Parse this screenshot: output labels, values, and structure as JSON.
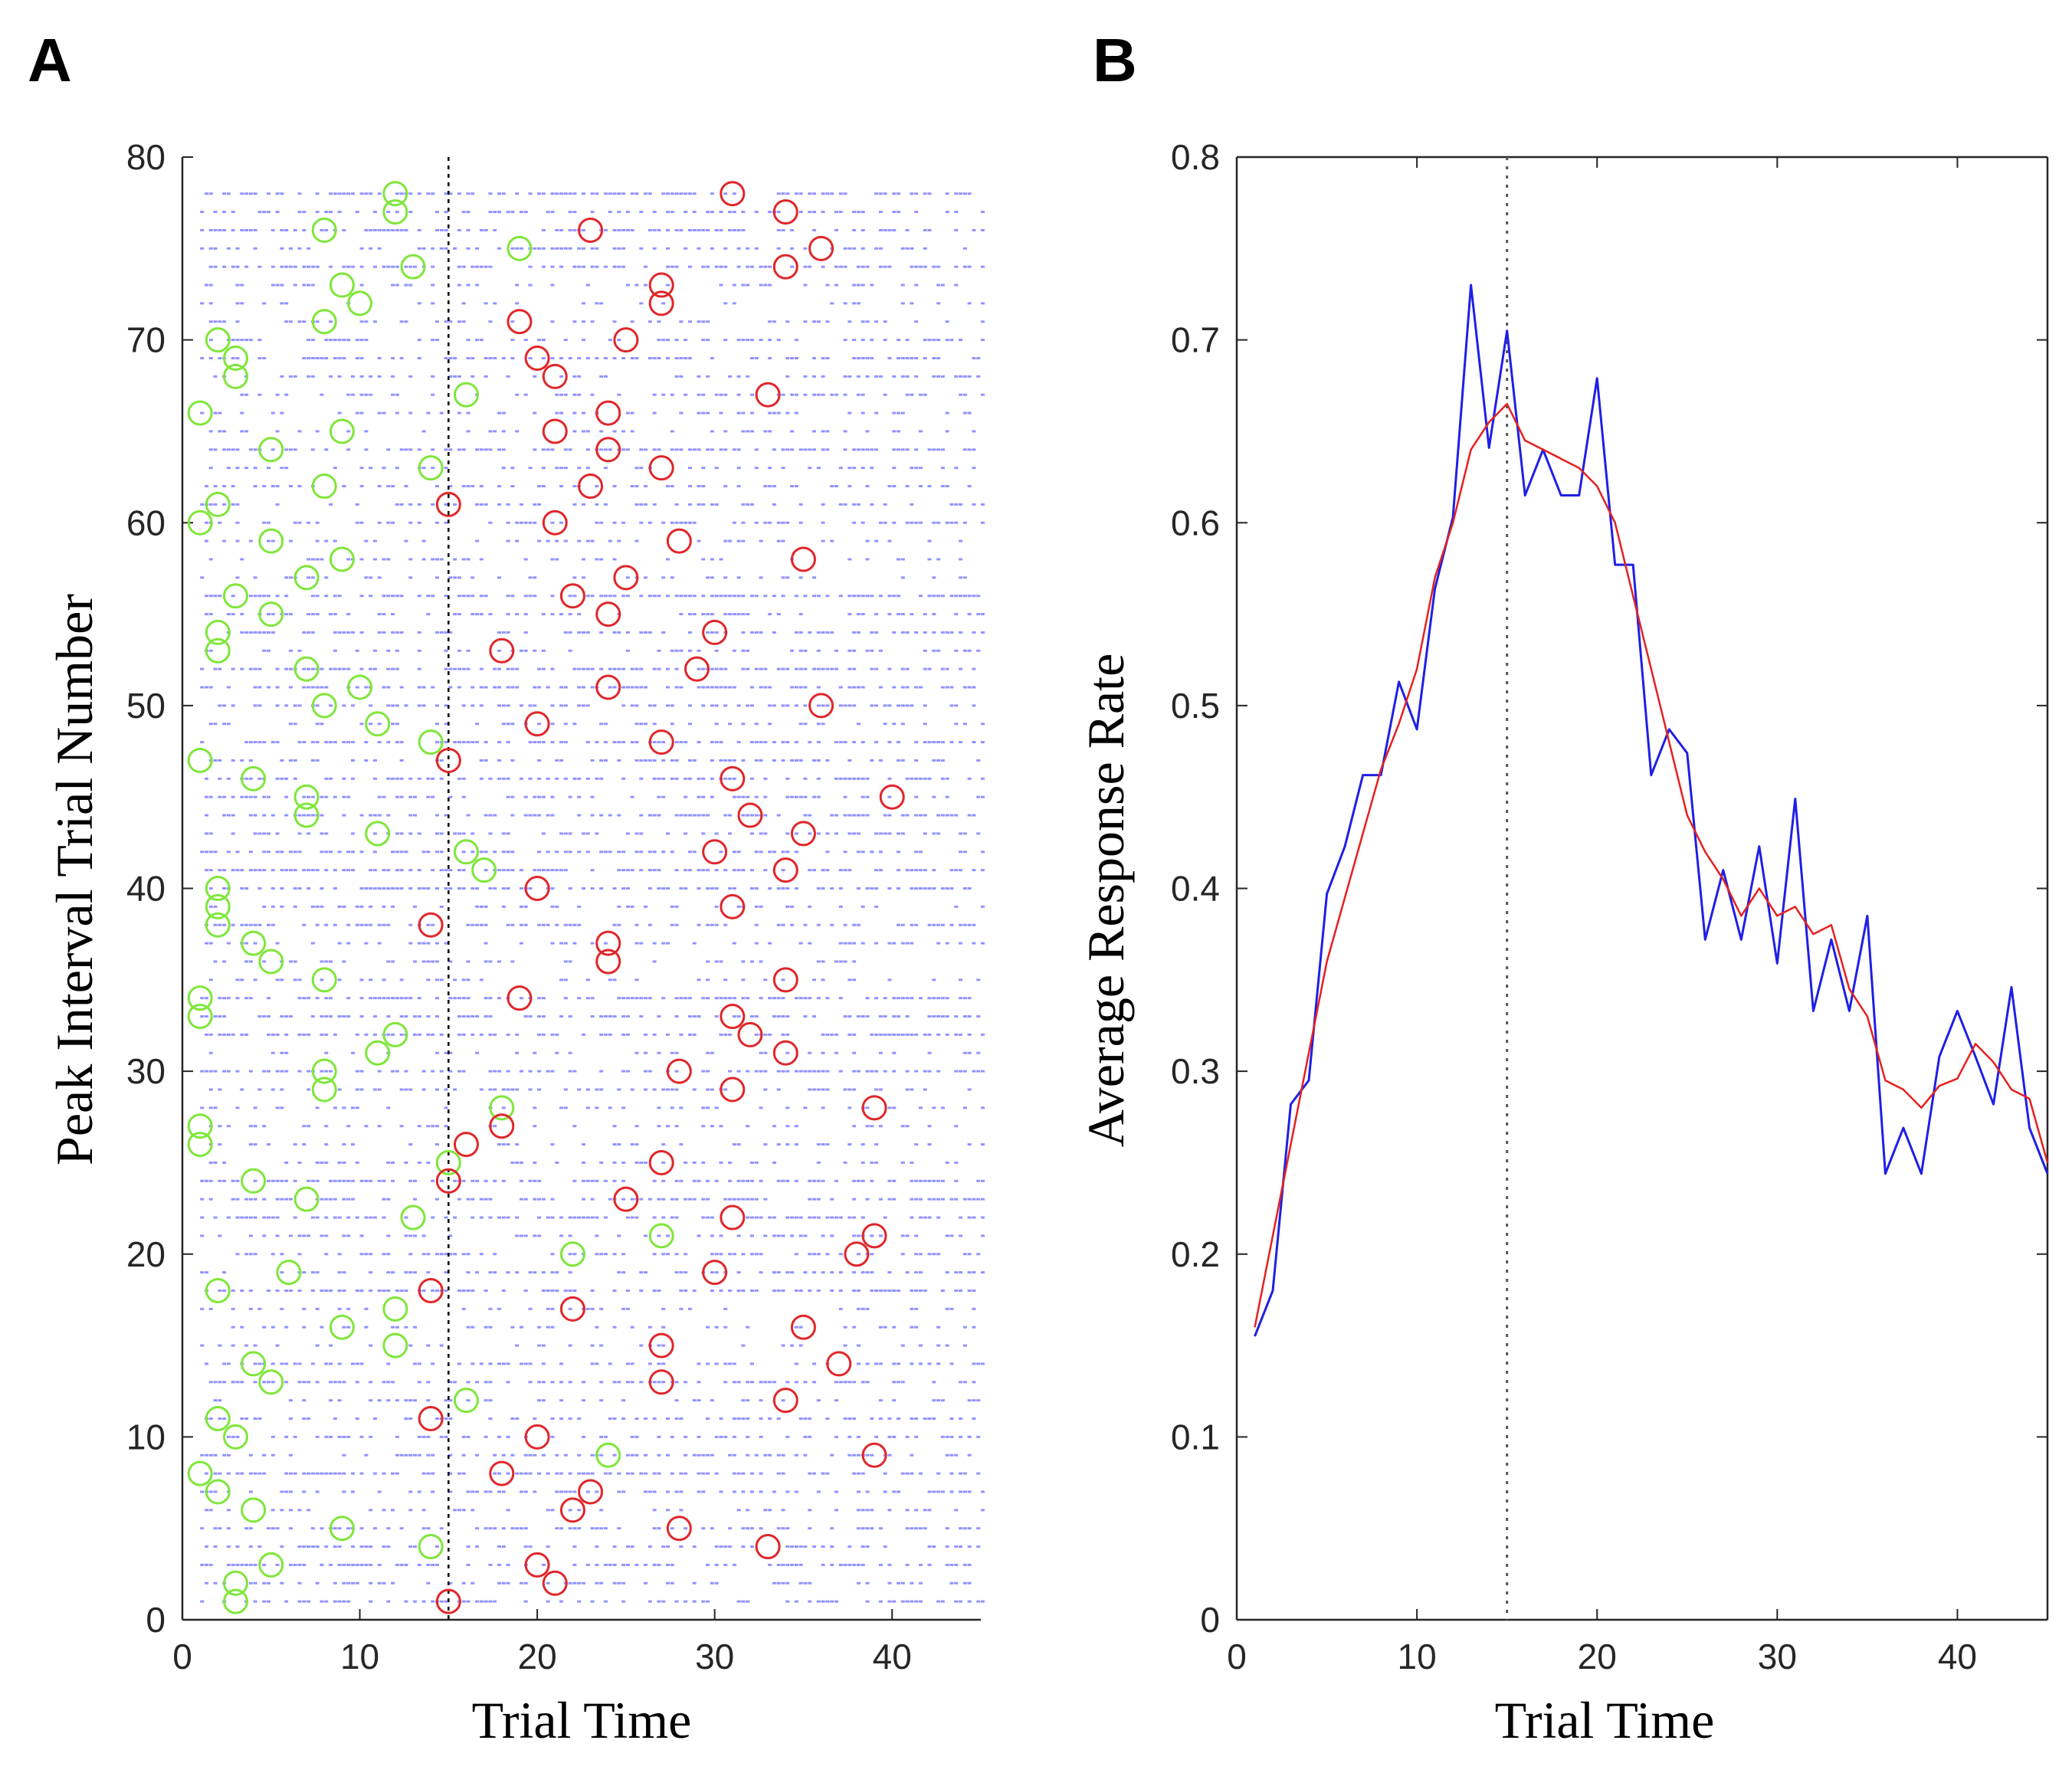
{
  "chart_data": [
    {
      "panel": "A",
      "type": "scatter",
      "xlabel": "Trial Time",
      "ylabel": "Peak Interval Trial Number",
      "xlim": [
        0,
        45
      ],
      "ylim": [
        0,
        80
      ],
      "xticks": [
        0,
        10,
        20,
        30,
        40
      ],
      "yticks": [
        0,
        10,
        20,
        30,
        40,
        50,
        60,
        70,
        80
      ],
      "reference_line": {
        "x": 15,
        "style": "dotted",
        "color": "#000000"
      },
      "colors": {
        "start_marker": "#7fe63a",
        "stop_marker": "#e0262a",
        "responses": "#3a3aff"
      },
      "responses": {
        "description_free": true,
        "trials": [
          1,
          2,
          3,
          4,
          5,
          6,
          7,
          8,
          9,
          10,
          11,
          12,
          13,
          14,
          15,
          16,
          17,
          18,
          19,
          20,
          21,
          22,
          23,
          24,
          25,
          26,
          27,
          28,
          29,
          30,
          31,
          32,
          33,
          34,
          35,
          36,
          37,
          38,
          39,
          40,
          41,
          42,
          43,
          44,
          45,
          46,
          47,
          48,
          49,
          50,
          51,
          52,
          53,
          54,
          55,
          56,
          57,
          58,
          59,
          60,
          61,
          62,
          63,
          64,
          65,
          66,
          67,
          68,
          69,
          70,
          71,
          72,
          73,
          74,
          75,
          76,
          77,
          78
        ],
        "x_range": [
          1,
          45
        ]
      },
      "series": [
        {
          "marker": "start",
          "points": [
            [
              3,
              1
            ],
            [
              3,
              2
            ],
            [
              5,
              3
            ],
            [
              14,
              4
            ],
            [
              9,
              5
            ],
            [
              4,
              6
            ],
            [
              2,
              7
            ],
            [
              1,
              8
            ],
            [
              24,
              9
            ],
            [
              3,
              10
            ],
            [
              2,
              11
            ],
            [
              16,
              12
            ],
            [
              5,
              13
            ],
            [
              4,
              14
            ],
            [
              12,
              15
            ],
            [
              9,
              16
            ],
            [
              12,
              17
            ],
            [
              2,
              18
            ],
            [
              6,
              19
            ],
            [
              22,
              20
            ],
            [
              27,
              21
            ],
            [
              13,
              22
            ],
            [
              7,
              23
            ],
            [
              4,
              24
            ],
            [
              15,
              25
            ],
            [
              1,
              26
            ],
            [
              1,
              27
            ],
            [
              18,
              28
            ],
            [
              8,
              29
            ],
            [
              8,
              30
            ],
            [
              11,
              31
            ],
            [
              12,
              32
            ],
            [
              1,
              33
            ],
            [
              1,
              34
            ],
            [
              8,
              35
            ],
            [
              5,
              36
            ],
            [
              4,
              37
            ],
            [
              2,
              38
            ],
            [
              2,
              39
            ],
            [
              2,
              40
            ],
            [
              17,
              41
            ],
            [
              16,
              42
            ],
            [
              11,
              43
            ],
            [
              7,
              44
            ],
            [
              7,
              45
            ],
            [
              4,
              46
            ],
            [
              1,
              47
            ],
            [
              14,
              48
            ],
            [
              11,
              49
            ],
            [
              8,
              50
            ],
            [
              10,
              51
            ],
            [
              7,
              52
            ],
            [
              2,
              53
            ],
            [
              2,
              54
            ],
            [
              5,
              55
            ],
            [
              3,
              56
            ],
            [
              7,
              57
            ],
            [
              9,
              58
            ],
            [
              5,
              59
            ],
            [
              1,
              60
            ],
            [
              2,
              61
            ],
            [
              8,
              62
            ],
            [
              14,
              63
            ],
            [
              5,
              64
            ],
            [
              9,
              65
            ],
            [
              1,
              66
            ],
            [
              16,
              67
            ],
            [
              3,
              68
            ],
            [
              3,
              69
            ],
            [
              2,
              70
            ],
            [
              8,
              71
            ],
            [
              10,
              72
            ],
            [
              9,
              73
            ],
            [
              13,
              74
            ],
            [
              19,
              75
            ],
            [
              8,
              76
            ],
            [
              12,
              77
            ],
            [
              12,
              78
            ]
          ]
        },
        {
          "marker": "stop",
          "points": [
            [
              15,
              1
            ],
            [
              21,
              2
            ],
            [
              20,
              3
            ],
            [
              33,
              4
            ],
            [
              28,
              5
            ],
            [
              22,
              6
            ],
            [
              23,
              7
            ],
            [
              18,
              8
            ],
            [
              39,
              9
            ],
            [
              20,
              10
            ],
            [
              14,
              11
            ],
            [
              34,
              12
            ],
            [
              27,
              13
            ],
            [
              37,
              14
            ],
            [
              27,
              15
            ],
            [
              35,
              16
            ],
            [
              22,
              17
            ],
            [
              14,
              18
            ],
            [
              30,
              19
            ],
            [
              38,
              20
            ],
            [
              39,
              21
            ],
            [
              31,
              22
            ],
            [
              25,
              23
            ],
            [
              15,
              24
            ],
            [
              27,
              25
            ],
            [
              16,
              26
            ],
            [
              18,
              27
            ],
            [
              39,
              28
            ],
            [
              31,
              29
            ],
            [
              28,
              30
            ],
            [
              34,
              31
            ],
            [
              32,
              32
            ],
            [
              31,
              33
            ],
            [
              19,
              34
            ],
            [
              34,
              35
            ],
            [
              24,
              36
            ],
            [
              24,
              37
            ],
            [
              14,
              38
            ],
            [
              31,
              39
            ],
            [
              20,
              40
            ],
            [
              34,
              41
            ],
            [
              30,
              42
            ],
            [
              35,
              43
            ],
            [
              32,
              44
            ],
            [
              40,
              45
            ],
            [
              31,
              46
            ],
            [
              15,
              47
            ],
            [
              27,
              48
            ],
            [
              20,
              49
            ],
            [
              36,
              50
            ],
            [
              24,
              51
            ],
            [
              29,
              52
            ],
            [
              18,
              53
            ],
            [
              30,
              54
            ],
            [
              24,
              55
            ],
            [
              22,
              56
            ],
            [
              25,
              57
            ],
            [
              35,
              58
            ],
            [
              28,
              59
            ],
            [
              21,
              60
            ],
            [
              15,
              61
            ],
            [
              23,
              62
            ],
            [
              27,
              63
            ],
            [
              24,
              64
            ],
            [
              21,
              65
            ],
            [
              24,
              66
            ],
            [
              33,
              67
            ],
            [
              21,
              68
            ],
            [
              20,
              69
            ],
            [
              25,
              70
            ],
            [
              19,
              71
            ],
            [
              27,
              72
            ],
            [
              27,
              73
            ],
            [
              34,
              74
            ],
            [
              36,
              75
            ],
            [
              23,
              76
            ],
            [
              34,
              77
            ],
            [
              31,
              78
            ]
          ]
        }
      ]
    },
    {
      "panel": "B",
      "type": "line",
      "xlabel": "Trial Time",
      "ylabel": "Average Response Rate",
      "xlim": [
        0,
        45
      ],
      "ylim": [
        0,
        0.8
      ],
      "xticks": [
        0,
        10,
        20,
        30,
        40
      ],
      "yticks": [
        "0",
        "0.1",
        "0.2",
        "0.3",
        "0.4",
        "0.5",
        "0.6",
        "0.7",
        "0.8"
      ],
      "reference_line": {
        "x": 15,
        "style": "dotted",
        "color": "#555555"
      },
      "x": [
        1,
        2,
        3,
        4,
        5,
        6,
        7,
        8,
        9,
        10,
        11,
        12,
        13,
        14,
        15,
        16,
        17,
        18,
        19,
        20,
        21,
        22,
        23,
        24,
        25,
        26,
        27,
        28,
        29,
        30,
        31,
        32,
        33,
        34,
        35,
        36,
        37,
        38,
        39,
        40,
        41,
        42,
        43,
        44,
        45
      ],
      "series": [
        {
          "color": "#1f1fe6",
          "values": [
            0.155,
            0.18,
            0.282,
            0.295,
            0.397,
            0.423,
            0.462,
            0.462,
            0.513,
            0.487,
            0.564,
            0.603,
            0.73,
            0.641,
            0.705,
            0.615,
            0.64,
            0.615,
            0.615,
            0.679,
            0.577,
            0.577,
            0.462,
            0.487,
            0.474,
            0.372,
            0.41,
            0.372,
            0.423,
            0.359,
            0.449,
            0.333,
            0.372,
            0.333,
            0.385,
            0.244,
            0.269,
            0.244,
            0.308,
            0.333,
            0.308,
            0.282,
            0.346,
            0.269,
            0.244
          ]
        },
        {
          "color": "#e62020",
          "values": [
            0.16,
            0.21,
            0.26,
            0.31,
            0.36,
            0.395,
            0.43,
            0.465,
            0.49,
            0.52,
            0.57,
            0.6,
            0.64,
            0.655,
            0.665,
            0.645,
            0.64,
            0.635,
            0.63,
            0.62,
            0.6,
            0.56,
            0.52,
            0.48,
            0.44,
            0.42,
            0.405,
            0.385,
            0.4,
            0.385,
            0.39,
            0.375,
            0.38,
            0.345,
            0.33,
            0.295,
            0.29,
            0.28,
            0.292,
            0.296,
            0.315,
            0.305,
            0.29,
            0.285,
            0.25
          ]
        }
      ]
    }
  ],
  "labels": {
    "panel_a": "A",
    "panel_b": "B"
  }
}
